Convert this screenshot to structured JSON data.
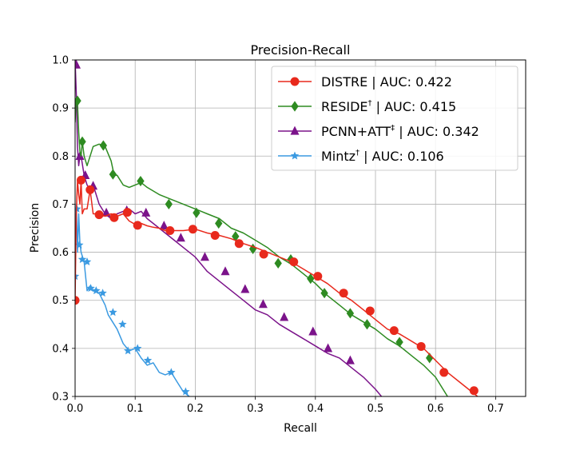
{
  "chart_data": {
    "type": "line",
    "title": "Precision-Recall",
    "xlabel": "Recall",
    "ylabel": "Precision",
    "xlim": [
      0.0,
      0.75
    ],
    "ylim": [
      0.3,
      1.0
    ],
    "xticks": [
      "0.0",
      "0.1",
      "0.2",
      "0.3",
      "0.4",
      "0.5",
      "0.6",
      "0.7"
    ],
    "yticks": [
      "0.3",
      "0.4",
      "0.5",
      "0.6",
      "0.7",
      "0.8",
      "0.9",
      "1.0"
    ],
    "grid": true,
    "legend_position": "top-right",
    "series": [
      {
        "name": "DISTRE | AUC: 0.422",
        "name_main": "DISTRE",
        "name_sup": "",
        "name_rest": " | AUC: 0.422",
        "color": "#e8291c",
        "marker": "circle",
        "x": [
          0.0,
          0.002,
          0.004,
          0.006,
          0.008,
          0.01,
          0.012,
          0.015,
          0.02,
          0.025,
          0.03,
          0.035,
          0.04,
          0.05,
          0.06,
          0.07,
          0.08,
          0.09,
          0.1,
          0.11,
          0.12,
          0.13,
          0.14,
          0.15,
          0.16,
          0.18,
          0.2,
          0.22,
          0.24,
          0.26,
          0.28,
          0.3,
          0.32,
          0.34,
          0.36,
          0.38,
          0.4,
          0.42,
          0.44,
          0.46,
          0.48,
          0.5,
          0.52,
          0.54,
          0.56,
          0.58,
          0.6,
          0.62,
          0.64,
          0.66,
          0.67
        ],
        "y": [
          0.5,
          0.68,
          0.75,
          0.72,
          0.7,
          0.75,
          0.68,
          0.69,
          0.69,
          0.73,
          0.68,
          0.68,
          0.68,
          0.675,
          0.68,
          0.675,
          0.68,
          0.665,
          0.658,
          0.66,
          0.655,
          0.652,
          0.65,
          0.645,
          0.645,
          0.645,
          0.648,
          0.64,
          0.635,
          0.628,
          0.618,
          0.61,
          0.6,
          0.59,
          0.58,
          0.565,
          0.55,
          0.535,
          0.515,
          0.5,
          0.48,
          0.46,
          0.44,
          0.43,
          0.415,
          0.4,
          0.375,
          0.35,
          0.33,
          0.31,
          0.3
        ],
        "markers_x": [
          0.0,
          0.01,
          0.025,
          0.04,
          0.065,
          0.087,
          0.104,
          0.158,
          0.196,
          0.233,
          0.273,
          0.314,
          0.364,
          0.404,
          0.447,
          0.491,
          0.531,
          0.576,
          0.614,
          0.664
        ],
        "markers_y": [
          0.5,
          0.75,
          0.73,
          0.678,
          0.672,
          0.683,
          0.656,
          0.645,
          0.648,
          0.635,
          0.618,
          0.596,
          0.58,
          0.55,
          0.515,
          0.478,
          0.437,
          0.404,
          0.35,
          0.312
        ]
      },
      {
        "name": "RESIDE† | AUC: 0.415",
        "name_main": "RESIDE",
        "name_sup": "†",
        "name_rest": " | AUC: 0.415",
        "color": "#2e8b21",
        "marker": "diamond",
        "x": [
          0.0,
          0.002,
          0.004,
          0.006,
          0.008,
          0.01,
          0.012,
          0.015,
          0.02,
          0.03,
          0.04,
          0.05,
          0.06,
          0.065,
          0.07,
          0.08,
          0.09,
          0.1,
          0.11,
          0.12,
          0.14,
          0.16,
          0.18,
          0.2,
          0.22,
          0.24,
          0.26,
          0.28,
          0.3,
          0.32,
          0.34,
          0.36,
          0.38,
          0.4,
          0.42,
          0.44,
          0.46,
          0.48,
          0.5,
          0.52,
          0.54,
          0.56,
          0.58,
          0.6,
          0.62
        ],
        "y": [
          0.87,
          0.92,
          0.91,
          0.85,
          0.81,
          0.8,
          0.83,
          0.8,
          0.78,
          0.82,
          0.825,
          0.82,
          0.79,
          0.76,
          0.76,
          0.74,
          0.735,
          0.74,
          0.745,
          0.735,
          0.72,
          0.71,
          0.7,
          0.69,
          0.68,
          0.67,
          0.65,
          0.64,
          0.625,
          0.61,
          0.59,
          0.575,
          0.555,
          0.535,
          0.51,
          0.49,
          0.47,
          0.455,
          0.44,
          0.42,
          0.405,
          0.385,
          0.365,
          0.34,
          0.3
        ],
        "markers_x": [
          0.004,
          0.012,
          0.047,
          0.063,
          0.109,
          0.156,
          0.202,
          0.239,
          0.267,
          0.296,
          0.338,
          0.359,
          0.392,
          0.415,
          0.458,
          0.486,
          0.54,
          0.59
        ],
        "markers_y": [
          0.915,
          0.83,
          0.822,
          0.762,
          0.748,
          0.7,
          0.682,
          0.66,
          0.633,
          0.607,
          0.577,
          0.585,
          0.545,
          0.515,
          0.473,
          0.45,
          0.413,
          0.38
        ]
      },
      {
        "name": "PCNN+ATT‡ | AUC: 0.342",
        "name_main": "PCNN+ATT",
        "name_sup": "‡",
        "name_rest": " | AUC: 0.342",
        "color": "#7b138a",
        "marker": "triangle",
        "x": [
          0.0,
          0.002,
          0.004,
          0.006,
          0.008,
          0.01,
          0.015,
          0.02,
          0.025,
          0.03,
          0.04,
          0.05,
          0.06,
          0.07,
          0.08,
          0.09,
          0.1,
          0.11,
          0.12,
          0.13,
          0.14,
          0.15,
          0.16,
          0.18,
          0.2,
          0.22,
          0.24,
          0.26,
          0.28,
          0.3,
          0.32,
          0.34,
          0.36,
          0.38,
          0.4,
          0.42,
          0.44,
          0.46,
          0.48,
          0.5,
          0.51
        ],
        "y": [
          1.0,
          0.93,
          0.82,
          0.78,
          0.8,
          0.8,
          0.76,
          0.74,
          0.73,
          0.74,
          0.7,
          0.68,
          0.67,
          0.68,
          0.685,
          0.69,
          0.68,
          0.685,
          0.67,
          0.66,
          0.65,
          0.64,
          0.63,
          0.61,
          0.59,
          0.56,
          0.54,
          0.52,
          0.5,
          0.48,
          0.47,
          0.45,
          0.435,
          0.42,
          0.405,
          0.39,
          0.38,
          0.36,
          0.34,
          0.315,
          0.3
        ],
        "markers_x": [
          0.002,
          0.008,
          0.017,
          0.03,
          0.052,
          0.086,
          0.118,
          0.148,
          0.176,
          0.216,
          0.25,
          0.283,
          0.313,
          0.348,
          0.396,
          0.421,
          0.458
        ],
        "markers_y": [
          0.99,
          0.8,
          0.76,
          0.738,
          0.682,
          0.687,
          0.682,
          0.655,
          0.63,
          0.59,
          0.56,
          0.523,
          0.492,
          0.465,
          0.435,
          0.4,
          0.375
        ]
      },
      {
        "name": "Mintz† | AUC: 0.106",
        "name_main": "Mintz",
        "name_sup": "†",
        "name_rest": " | AUC: 0.106",
        "color": "#3b9ae1",
        "marker": "star",
        "x": [
          0.0,
          0.002,
          0.004,
          0.006,
          0.008,
          0.01,
          0.015,
          0.02,
          0.025,
          0.03,
          0.04,
          0.05,
          0.055,
          0.06,
          0.07,
          0.08,
          0.09,
          0.1,
          0.11,
          0.12,
          0.13,
          0.14,
          0.15,
          0.16,
          0.17,
          0.18,
          0.19
        ],
        "y": [
          0.55,
          0.7,
          0.6,
          0.68,
          0.62,
          0.6,
          0.58,
          0.52,
          0.53,
          0.52,
          0.515,
          0.49,
          0.47,
          0.46,
          0.44,
          0.41,
          0.395,
          0.4,
          0.38,
          0.365,
          0.37,
          0.35,
          0.345,
          0.35,
          0.33,
          0.31,
          0.3
        ],
        "markers_x": [
          0.0,
          0.003,
          0.007,
          0.012,
          0.02,
          0.026,
          0.035,
          0.046,
          0.063,
          0.079,
          0.088,
          0.104,
          0.121,
          0.16,
          0.184
        ],
        "markers_y": [
          0.55,
          0.69,
          0.615,
          0.585,
          0.58,
          0.525,
          0.52,
          0.515,
          0.475,
          0.45,
          0.395,
          0.4,
          0.375,
          0.35,
          0.31
        ]
      }
    ]
  }
}
